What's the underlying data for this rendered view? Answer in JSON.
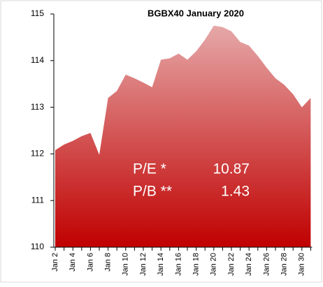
{
  "chart_data": {
    "type": "area",
    "title": "BGBX40  January 2020",
    "categories": [
      "Jan 2",
      null,
      "Jan 4",
      null,
      "Jan 6",
      null,
      "Jan 8",
      null,
      "Jan 10",
      null,
      "Jan 12",
      null,
      "Jan 14",
      null,
      "Jan 16",
      null,
      "Jan 18",
      null,
      "Jan 20",
      null,
      "Jan 22",
      null,
      "Jan 24",
      null,
      "Jan 26",
      null,
      "Jan 28",
      null,
      "Jan 30",
      null
    ],
    "values": [
      112.08,
      112.2,
      112.28,
      112.38,
      112.45,
      111.98,
      113.2,
      113.35,
      113.7,
      113.62,
      113.53,
      113.43,
      114.02,
      114.05,
      114.15,
      114.02,
      114.2,
      114.45,
      114.75,
      114.72,
      114.63,
      114.4,
      114.32,
      114.1,
      113.85,
      113.62,
      113.48,
      113.28,
      113.0,
      113.2
    ],
    "color": "#c00000",
    "ylim": [
      110,
      115
    ],
    "yticks": [
      110,
      111,
      112,
      113,
      114,
      115
    ],
    "grid": false,
    "annotations": [
      "P/E *",
      "10.87",
      "P/B **",
      "1.43"
    ]
  }
}
